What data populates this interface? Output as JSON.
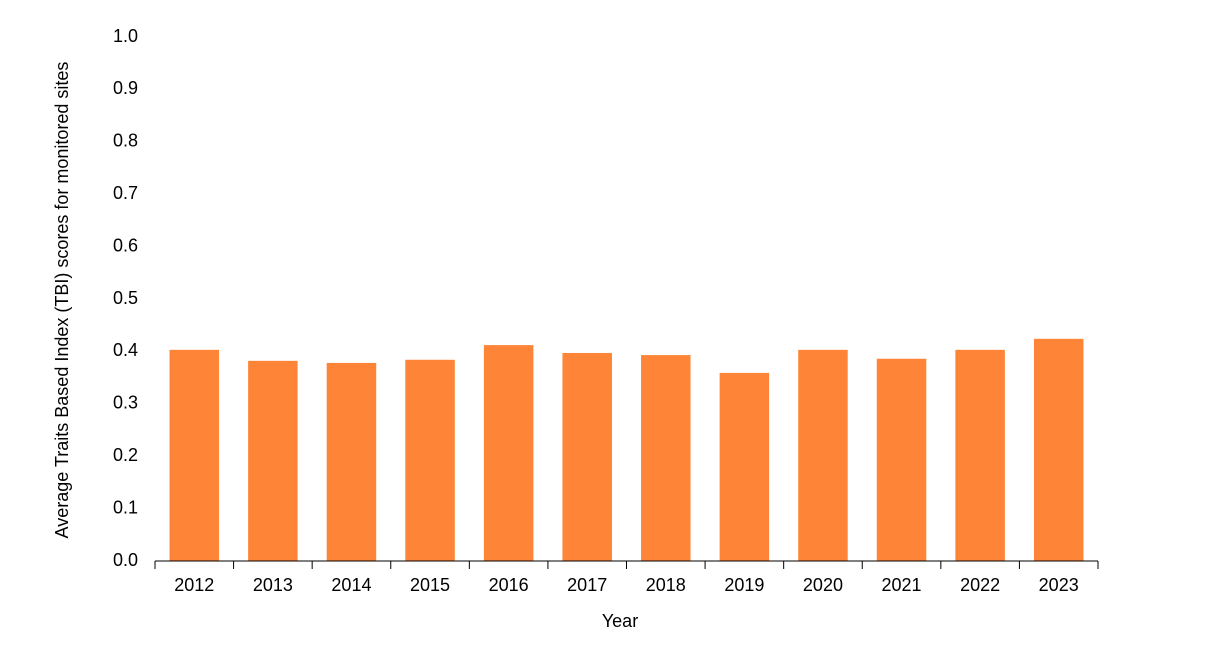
{
  "chart_data": {
    "type": "bar",
    "x_label": "Year",
    "y_label": "Average Traits Based Index (TBI) scores for monitored sites",
    "categories": [
      "2012",
      "2013",
      "2014",
      "2015",
      "2016",
      "2017",
      "2018",
      "2019",
      "2020",
      "2021",
      "2022",
      "2023"
    ],
    "values": [
      0.403,
      0.382,
      0.378,
      0.384,
      0.412,
      0.397,
      0.393,
      0.359,
      0.403,
      0.386,
      0.403,
      0.424
    ],
    "color": "#fe8537",
    "ylim": [
      0,
      1
    ],
    "yticks": [
      {
        "value": 0,
        "label": "0.0"
      },
      0.1,
      0.2,
      0.3,
      0.4,
      0.5,
      0.6,
      0.7,
      0.8,
      0.9,
      {
        "value": 1,
        "label": "1.0"
      }
    ],
    "grid": false
  }
}
